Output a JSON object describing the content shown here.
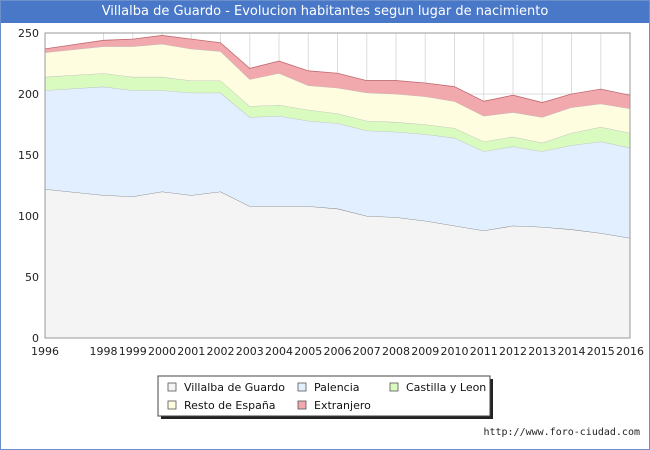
{
  "title": "Villalba de Guardo - Evolucion habitantes segun lugar de nacimiento",
  "source": "http://www.foro-ciudad.com",
  "colors": {
    "title_bg": "#4a78c8",
    "grid": "#dddddd",
    "Villalba de Guardo": "#f4f4f4",
    "Palencia": "#e2efff",
    "Castilla y Leon": "#d9fbc0",
    "Resto de España": "#fffde0",
    "Extranjero": "#f2a9ad"
  },
  "chart_data": {
    "type": "area",
    "stacked": true,
    "title": "Villalba de Guardo - Evolucion habitantes segun lugar de nacimiento",
    "x": [
      "1996",
      "1998",
      "1999",
      "2000",
      "2001",
      "2002",
      "2003",
      "2004",
      "2005",
      "2006",
      "2007",
      "2008",
      "2009",
      "2010",
      "2011",
      "2012",
      "2013",
      "2014",
      "2015",
      "2016"
    ],
    "ylim": [
      0,
      250
    ],
    "yticks": [
      0,
      50,
      100,
      150,
      200,
      250
    ],
    "grid": true,
    "legend_position": "bottom",
    "series": [
      {
        "name": "Villalba de Guardo",
        "values": [
          122,
          117,
          116,
          120,
          117,
          120,
          108,
          108,
          108,
          106,
          100,
          99,
          96,
          92,
          88,
          92,
          91,
          89,
          86,
          82
        ]
      },
      {
        "name": "Palencia",
        "values": [
          81,
          89,
          87,
          83,
          84,
          81,
          73,
          74,
          70,
          70,
          70,
          70,
          71,
          72,
          65,
          65,
          62,
          69,
          75,
          74
        ]
      },
      {
        "name": "Castilla y Leon",
        "values": [
          11,
          11,
          11,
          11,
          10,
          10,
          9,
          9,
          9,
          8,
          8,
          8,
          8,
          8,
          8,
          8,
          7,
          10,
          12,
          12
        ]
      },
      {
        "name": "Resto de España",
        "values": [
          20,
          22,
          25,
          27,
          26,
          24,
          22,
          26,
          20,
          21,
          23,
          23,
          23,
          22,
          21,
          20,
          21,
          21,
          19,
          20
        ]
      },
      {
        "name": "Extranjero",
        "values": [
          3,
          5,
          6,
          7,
          8,
          7,
          9,
          10,
          12,
          12,
          10,
          11,
          11,
          12,
          12,
          14,
          12,
          11,
          12,
          11
        ]
      }
    ]
  }
}
